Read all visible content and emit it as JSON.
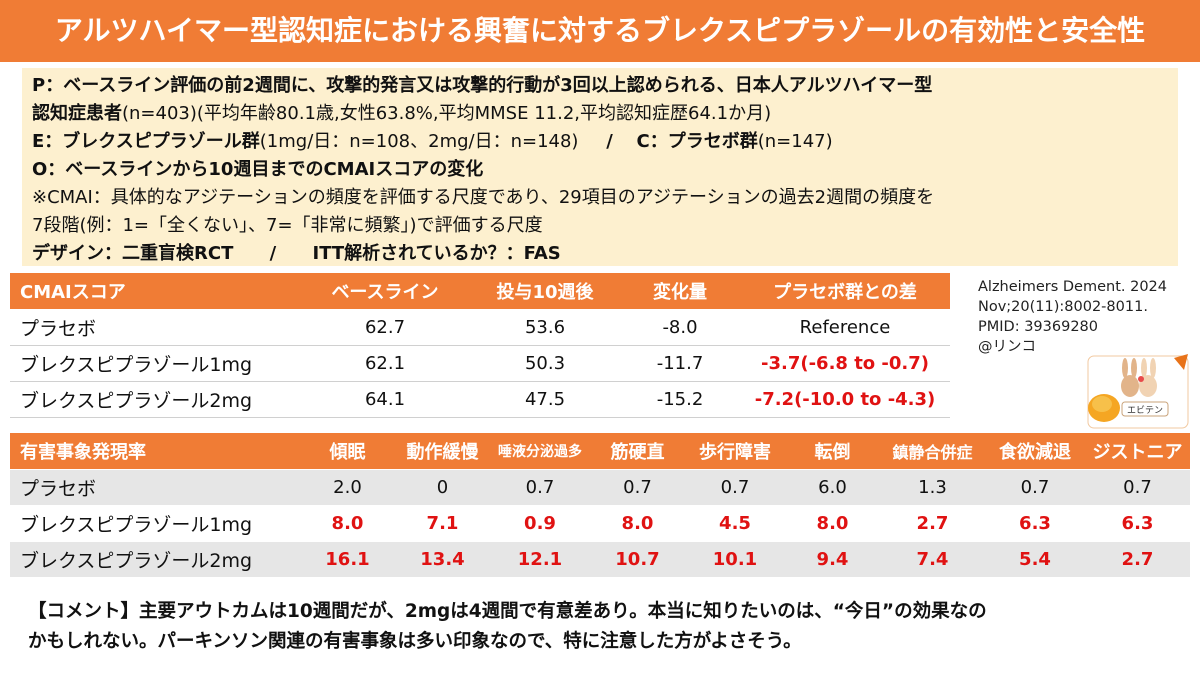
{
  "title": "アルツハイマー型認知症における興奮に対するブレクスピプラゾールの有効性と安全性",
  "pico": {
    "p_label": "P：ベースライン評価の前2週間に、攻撃的発言又は攻撃的行動が3回以上認められる、日本人アルツハイマー型",
    "p_label2": "認知症患者",
    "p_detail": "(n=403)(平均年齢80.1歳,女性63.8%,平均MMSE 11.2,平均認知症歴64.1か月)",
    "e_label": "E：ブレクスピプラゾール群",
    "e_detail": "(1mg/日：n=108、2mg/日：n=148)",
    "separator": "/",
    "c_label": "C：プラセボ群",
    "c_detail": "(n=147)",
    "o_label": "O：ベースラインから10週目までのCMAIスコアの変化",
    "note1": "※CMAI：具体的なアジテーションの頻度を評価する尺度であり、29項目のアジテーションの過去2週間の頻度を",
    "note2": "7段階(例：1=「全くない」、7=「非常に頻繁」)で評価する尺度",
    "design_label": "デザイン：二重盲検RCT",
    "itt_label": "ITT解析されているか？：FAS"
  },
  "cmai_table": {
    "headers": [
      "CMAIスコア",
      "ベースライン",
      "投与10週後",
      "変化量",
      "プラセボ群との差"
    ],
    "rows": [
      [
        "プラセボ",
        "62.7",
        "53.6",
        "-8.0",
        "Reference"
      ],
      [
        "ブレクスピプラゾール1mg",
        "62.1",
        "50.3",
        "-11.7",
        "-3.7(-6.8 to -0.7)"
      ],
      [
        "ブレクスピプラゾール2mg",
        "64.1",
        "47.5",
        "-15.2",
        "-7.2(-10.0 to -4.3)"
      ]
    ]
  },
  "ae_table": {
    "headers": [
      "有害事象発現率",
      "傾眠",
      "動作緩慢",
      "唾液分泌過多",
      "筋硬直",
      "歩行障害",
      "転倒",
      "鎮静合併症",
      "食欲減退",
      "ジストニア"
    ],
    "rows": [
      [
        "プラセボ",
        "2.0",
        "0",
        "0.7",
        "0.7",
        "0.7",
        "6.0",
        "1.3",
        "0.7",
        "0.7"
      ],
      [
        "ブレクスピプラゾール1mg",
        "8.0",
        "7.1",
        "0.9",
        "8.0",
        "4.5",
        "8.0",
        "2.7",
        "6.3",
        "6.3"
      ],
      [
        "ブレクスピプラゾール2mg",
        "16.1",
        "13.4",
        "12.1",
        "10.7",
        "10.1",
        "9.4",
        "7.4",
        "5.4",
        "2.7"
      ]
    ]
  },
  "citation": {
    "line1": "Alzheimers Dement. 2024",
    "line2": "Nov;20(11):8002-8011.",
    "line3": "PMID: 39369280",
    "line4": "@リンコ"
  },
  "logo_text": "エビテン",
  "comment": {
    "line1": "【コメント】主要アウトカムは10週間だが、2mgは4週間で有意差あり。本当に知りたいのは、“今日”の効果なの",
    "line2": "かもしれない。パーキンソン関連の有害事象は多い印象なので、特に注意した方がよさそう。"
  },
  "colors": {
    "accent": "#f07c35",
    "pico_bg": "#fdf0cf",
    "highlight_red": "#e01212"
  }
}
